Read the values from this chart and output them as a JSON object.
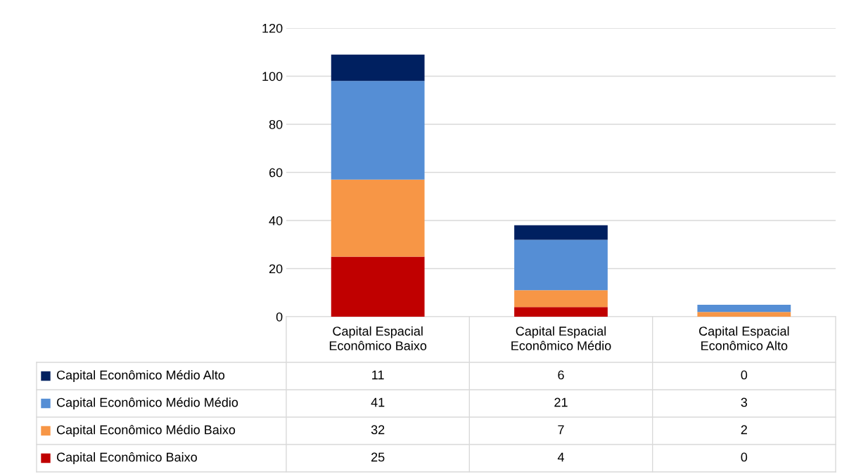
{
  "chart_data": {
    "type": "bar",
    "stacked": true,
    "categories": [
      "Capital Espacial\nEconômico Baixo",
      "Capital Espacial\nEconômico Médio",
      "Capital Espacial\nEconômico Alto"
    ],
    "series": [
      {
        "name": "Capital Econômico Baixo",
        "color": "#c00000",
        "values": [
          25,
          4,
          0
        ]
      },
      {
        "name": "Capital Econômico Médio Baixo",
        "color": "#f79646",
        "values": [
          32,
          7,
          2
        ]
      },
      {
        "name": "Capital Econômico Médio Médio",
        "color": "#558ed5",
        "values": [
          41,
          21,
          3
        ]
      },
      {
        "name": "Capital Econômico Médio Alto",
        "color": "#002060",
        "values": [
          11,
          6,
          0
        ]
      }
    ],
    "ylim": [
      0,
      120
    ],
    "yticks": [
      0,
      20,
      40,
      60,
      80,
      100,
      120
    ],
    "grid": "y",
    "legend": "bottom left",
    "data_labels": true,
    "tick_labels": "y"
  }
}
